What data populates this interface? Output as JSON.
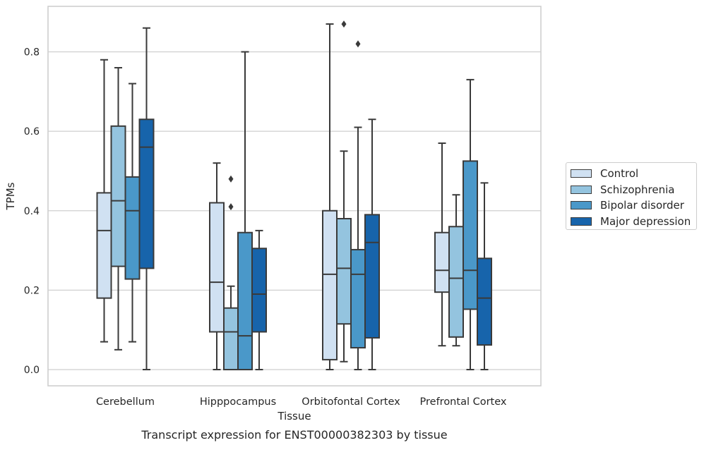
{
  "chart_data": {
    "type": "box",
    "xlabel": "Tissue",
    "ylabel": "TPMs",
    "caption": "Transcript expression for ENST00000382303 by tissue",
    "categories": [
      "Cerebellum",
      "Hipppocampus",
      "Orbitofontal Cortex",
      "Prefrontal Cortex"
    ],
    "ylim": [
      -0.04,
      0.915
    ],
    "yticks": [
      "0.0",
      "0.2",
      "0.4",
      "0.6",
      "0.8"
    ],
    "grid": true,
    "legend_position": "right",
    "series": [
      {
        "name": "Control",
        "color": "#d0e1f2",
        "boxes": [
          {
            "whislo": 0.07,
            "q1": 0.18,
            "med": 0.35,
            "q3": 0.445,
            "whishi": 0.78,
            "fliers": []
          },
          {
            "whislo": 0.0,
            "q1": 0.095,
            "med": 0.22,
            "q3": 0.42,
            "whishi": 0.52,
            "fliers": []
          },
          {
            "whislo": 0.0,
            "q1": 0.025,
            "med": 0.24,
            "q3": 0.4,
            "whishi": 0.87,
            "fliers": []
          },
          {
            "whislo": 0.06,
            "q1": 0.195,
            "med": 0.25,
            "q3": 0.345,
            "whishi": 0.57,
            "fliers": []
          }
        ]
      },
      {
        "name": "Schizophrenia",
        "color": "#94c4df",
        "boxes": [
          {
            "whislo": 0.05,
            "q1": 0.26,
            "med": 0.425,
            "q3": 0.613,
            "whishi": 0.76,
            "fliers": []
          },
          {
            "whislo": 0.0,
            "q1": 0.0,
            "med": 0.095,
            "q3": 0.155,
            "whishi": 0.21,
            "fliers": [
              0.48,
              0.41
            ]
          },
          {
            "whislo": 0.02,
            "q1": 0.115,
            "med": 0.255,
            "q3": 0.38,
            "whishi": 0.55,
            "fliers": [
              0.87
            ]
          },
          {
            "whislo": 0.06,
            "q1": 0.082,
            "med": 0.23,
            "q3": 0.36,
            "whishi": 0.44,
            "fliers": []
          }
        ]
      },
      {
        "name": "Bipolar disorder",
        "color": "#4a98c9",
        "boxes": [
          {
            "whislo": 0.07,
            "q1": 0.228,
            "med": 0.4,
            "q3": 0.485,
            "whishi": 0.72,
            "fliers": []
          },
          {
            "whislo": 0.0,
            "q1": 0.0,
            "med": 0.085,
            "q3": 0.345,
            "whishi": 0.8,
            "fliers": []
          },
          {
            "whislo": 0.0,
            "q1": 0.055,
            "med": 0.24,
            "q3": 0.302,
            "whishi": 0.61,
            "fliers": [
              0.82
            ]
          },
          {
            "whislo": 0.0,
            "q1": 0.152,
            "med": 0.25,
            "q3": 0.525,
            "whishi": 0.73,
            "fliers": []
          }
        ]
      },
      {
        "name": "Major depression",
        "color": "#1764ab",
        "boxes": [
          {
            "whislo": 0.0,
            "q1": 0.255,
            "med": 0.56,
            "q3": 0.63,
            "whishi": 0.86,
            "fliers": []
          },
          {
            "whislo": 0.0,
            "q1": 0.095,
            "med": 0.19,
            "q3": 0.305,
            "whishi": 0.35,
            "fliers": []
          },
          {
            "whislo": 0.0,
            "q1": 0.08,
            "med": 0.32,
            "q3": 0.39,
            "whishi": 0.63,
            "fliers": []
          },
          {
            "whislo": 0.0,
            "q1": 0.062,
            "med": 0.18,
            "q3": 0.28,
            "whishi": 0.47,
            "fliers": []
          }
        ]
      }
    ]
  }
}
